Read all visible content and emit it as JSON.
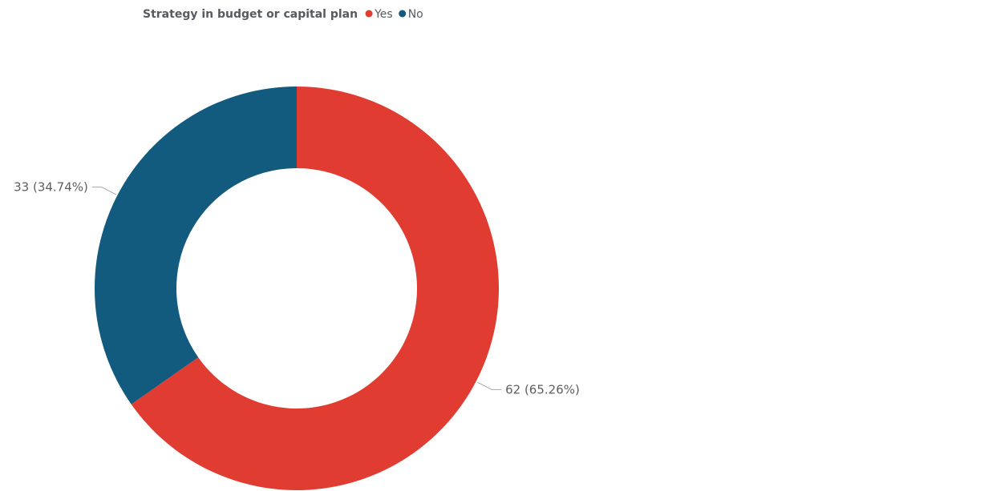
{
  "chart_data": {
    "type": "pie",
    "donut": true,
    "legend": {
      "title": "Strategy in budget or capital plan",
      "position": "top-left"
    },
    "slices": [
      {
        "label": "Yes",
        "value": 62,
        "percent": 65.26,
        "data_label": "62 (65.26%)",
        "color": "#e03c31"
      },
      {
        "label": "No",
        "value": 33,
        "percent": 34.74,
        "data_label": "33 (34.74%)",
        "color": "#125b7e"
      }
    ]
  }
}
